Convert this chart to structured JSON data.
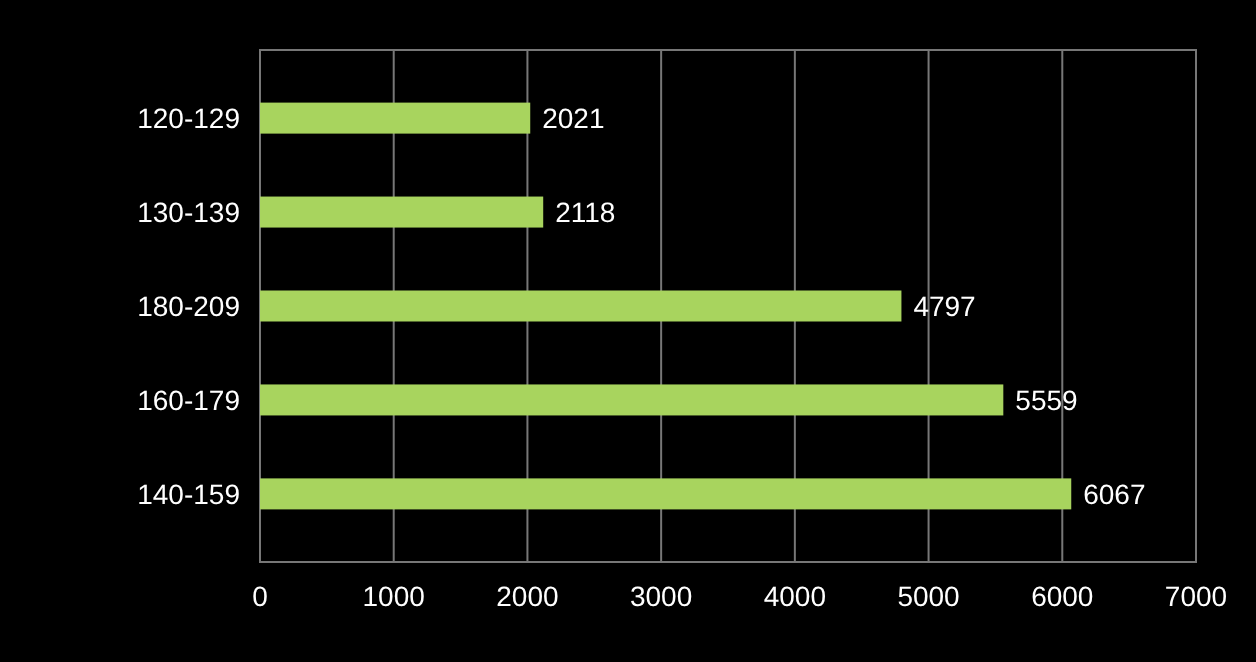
{
  "chart_data": {
    "type": "bar",
    "orientation": "horizontal",
    "categories": [
      "120-129",
      "130-139",
      "180-209",
      "160-179",
      "140-159"
    ],
    "values": [
      2021,
      2118,
      4797,
      5559,
      6067
    ],
    "color": "#a8d45e",
    "xlim": [
      0,
      7000
    ],
    "xticks": [
      0,
      1000,
      2000,
      3000,
      4000,
      5000,
      6000,
      7000
    ],
    "grid": "x",
    "data_labels": true
  }
}
